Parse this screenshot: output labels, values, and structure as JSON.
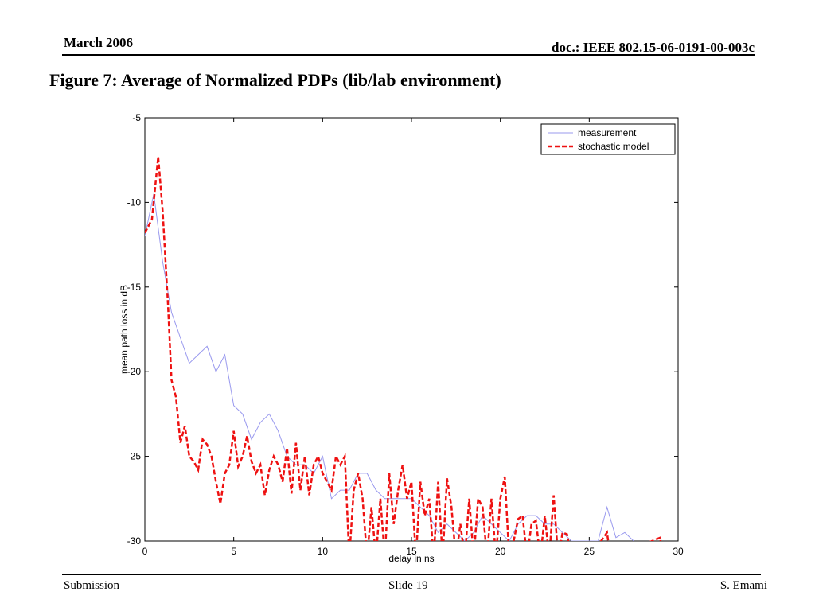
{
  "header": {
    "date": "March 2006",
    "doc": "doc.: IEEE 802.15-06-0191-00-003c"
  },
  "footer": {
    "left": "Submission",
    "center": "Slide 19",
    "right": "S. Emami"
  },
  "slide_title": "Figure 7: Average of Normalized PDPs (lib/lab environment)",
  "chart_data": {
    "type": "line",
    "xlabel": "delay in ns",
    "ylabel": "mean path loss in dB",
    "xlim": [
      0,
      30
    ],
    "ylim": [
      -30,
      -5
    ],
    "xticks": [
      0,
      5,
      10,
      15,
      20,
      25,
      30
    ],
    "yticks": [
      -5,
      -10,
      -15,
      -20,
      -25,
      -30
    ],
    "legend": "upper right",
    "series": [
      {
        "name": "measurement",
        "color": "#9999ee",
        "linestyle": "solid",
        "x": [
          0,
          0.5,
          1,
          1.5,
          2,
          2.5,
          3,
          3.5,
          4,
          4.5,
          5,
          5.5,
          6,
          6.5,
          7,
          7.5,
          8,
          8.5,
          9,
          9.5,
          10,
          10.5,
          11,
          11.5,
          12,
          12.5,
          13,
          13.5,
          14,
          14.5,
          15,
          15.5,
          16,
          16.5,
          17,
          17.5,
          18,
          18.5,
          19,
          19.5,
          20,
          20.5,
          21,
          21.5,
          22,
          22.5,
          23,
          23.5,
          24,
          24.5,
          25,
          25.5,
          26,
          26.5,
          27,
          27.5
        ],
        "values": [
          -12,
          -9.5,
          -13.5,
          -16.5,
          -18,
          -19.5,
          -19,
          -18.5,
          -20,
          -19,
          -22,
          -22.5,
          -24,
          -23,
          -22.5,
          -23.5,
          -25,
          -25.5,
          -25.5,
          -26,
          -25,
          -27.5,
          -27,
          -27,
          -26,
          -26,
          -27,
          -27.5,
          -27.5,
          -27.5,
          -27.5,
          -28,
          -28.5,
          -29.5,
          -29,
          -29.5,
          -30,
          -29.5,
          -28.5,
          -29,
          -29.5,
          -30,
          -29,
          -28.5,
          -28.5,
          -29,
          -29,
          -29.5,
          -30,
          -30,
          -30,
          -30,
          -28,
          -29.8,
          -29.5,
          -30
        ]
      },
      {
        "name": "stochastic model",
        "color": "#ee1111",
        "linestyle": "dashed",
        "x": [
          0,
          0.4,
          0.75,
          1,
          1.3,
          1.5,
          1.75,
          2,
          2.25,
          2.5,
          2.75,
          3,
          3.25,
          3.5,
          3.75,
          4,
          4.25,
          4.5,
          4.75,
          5,
          5.25,
          5.5,
          5.75,
          6,
          6.25,
          6.5,
          6.75,
          7,
          7.25,
          7.5,
          7.75,
          8,
          8.25,
          8.5,
          8.75,
          9,
          9.25,
          9.5,
          9.75,
          10,
          10.25,
          10.5,
          10.75,
          11,
          11.25,
          11.5,
          11.75,
          12,
          12.25,
          12.5,
          12.75,
          13,
          13.25,
          13.5,
          13.75,
          14,
          14.25,
          14.5,
          14.75,
          15,
          15.25,
          15.5,
          15.75,
          16,
          16.25,
          16.5,
          16.75,
          17,
          17.25,
          17.5,
          17.75,
          18,
          18.25,
          18.5,
          18.75,
          19,
          19.25,
          19.5,
          19.75,
          20,
          20.25,
          20.5,
          20.75,
          21,
          21.25,
          21.5,
          21.75,
          22,
          22.25,
          22.5,
          22.75,
          23,
          23.25,
          23.5,
          23.75,
          24,
          24.5,
          25,
          26,
          26.2,
          29,
          29.1
        ],
        "values": [
          -11.8,
          -11,
          -7.3,
          -10.5,
          -16,
          -20.5,
          -21.5,
          -24.2,
          -23.2,
          -25,
          -25.3,
          -25.8,
          -24,
          -24.3,
          -25,
          -26.5,
          -27.8,
          -26,
          -25.5,
          -23.5,
          -25.6,
          -25,
          -23.8,
          -25.3,
          -26,
          -25.5,
          -27.3,
          -25.8,
          -25,
          -25.5,
          -26.5,
          -24.5,
          -27.2,
          -24.2,
          -27,
          -25,
          -27.3,
          -25.5,
          -25,
          -26,
          -26.5,
          -27,
          -25,
          -25.5,
          -25,
          -31,
          -27,
          -26,
          -27.5,
          -31,
          -28,
          -31,
          -27.5,
          -31,
          -26,
          -29,
          -27,
          -25.5,
          -27.5,
          -26.5,
          -31,
          -26.5,
          -28.5,
          -27.5,
          -31,
          -26.5,
          -31,
          -26.3,
          -28,
          -31,
          -29,
          -31,
          -27.5,
          -31,
          -27.5,
          -28,
          -31,
          -27.5,
          -31,
          -27.5,
          -26.2,
          -31,
          -30,
          -28.7,
          -28.5,
          -31,
          -29,
          -28.8,
          -31,
          -28.5,
          -31,
          -27.3,
          -31,
          -29.5,
          -29.6,
          -31,
          -31,
          -31,
          -29.5,
          -31,
          -29.8,
          -31
        ]
      }
    ]
  }
}
